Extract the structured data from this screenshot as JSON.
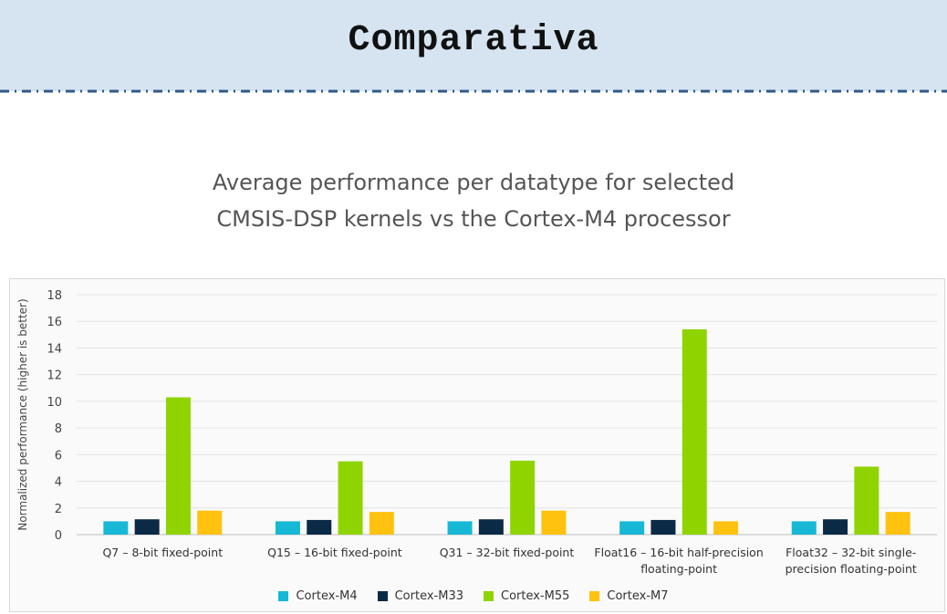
{
  "header": {
    "title": "Comparativa"
  },
  "chart_data": {
    "type": "bar",
    "title_lines": [
      "Average performance per datatype for selected",
      "CMSIS-DSP kernels vs the Cortex-M4 processor"
    ],
    "xlabel": "",
    "ylabel": "Normalized performance (higher is better)",
    "ylim": [
      0,
      18
    ],
    "yticks": [
      0,
      2,
      4,
      6,
      8,
      10,
      12,
      14,
      16,
      18
    ],
    "grid": true,
    "legend_position": "bottom",
    "categories": [
      "Q7 – 8-bit fixed-point",
      "Q15 – 16-bit fixed-point",
      "Q31 – 32-bit fixed-point",
      "Float16 – 16-bit half-precision floating-point",
      "Float32 – 32-bit single-precision floating-point"
    ],
    "category_label_lines": [
      [
        "Q7 – 8-bit fixed-point"
      ],
      [
        "Q15 – 16-bit fixed-point"
      ],
      [
        "Q31 – 32-bit fixed-point"
      ],
      [
        "Float16 – 16-bit half-precision",
        "floating-point"
      ],
      [
        "Float32 – 32-bit single-",
        "precision floating-point"
      ]
    ],
    "series": [
      {
        "name": "Cortex-M4",
        "color": "#17b8d6",
        "values": [
          1.0,
          1.0,
          1.0,
          1.0,
          1.0
        ]
      },
      {
        "name": "Cortex-M33",
        "color": "#0b2a45",
        "values": [
          1.15,
          1.1,
          1.15,
          1.1,
          1.15
        ]
      },
      {
        "name": "Cortex-M55",
        "color": "#8fd400",
        "values": [
          10.3,
          5.5,
          5.55,
          15.4,
          5.1
        ]
      },
      {
        "name": "Cortex-M7",
        "color": "#ffc20e",
        "values": [
          1.8,
          1.7,
          1.8,
          1.0,
          1.7
        ]
      }
    ]
  }
}
